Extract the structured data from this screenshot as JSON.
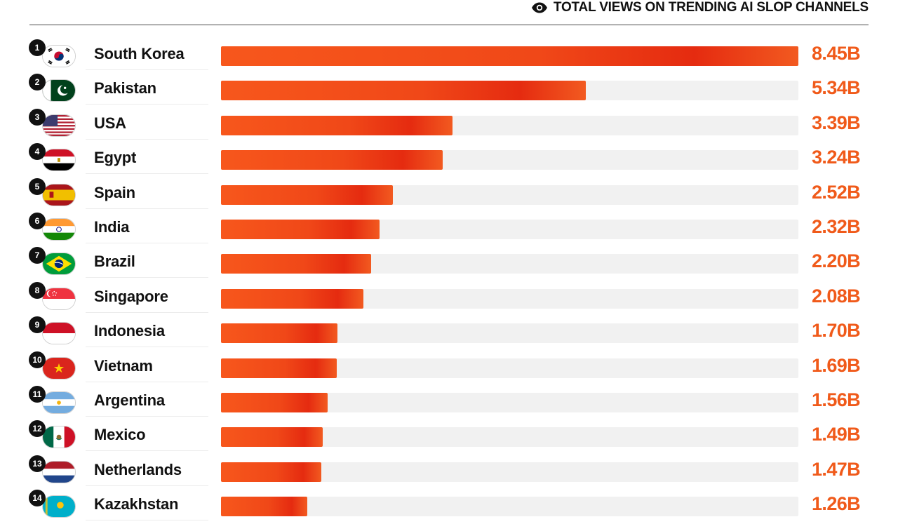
{
  "header": {
    "icon": "eye-icon",
    "title": "TOTAL VIEWS ON TRENDING AI SLOP CHANNELS"
  },
  "colors": {
    "bar": "#f04818",
    "bar_dark": "#e52b10",
    "value_text": "#f05a1a",
    "track": "#f1f1f1",
    "rank_badge": "#111111"
  },
  "chart_data": {
    "type": "bar",
    "orientation": "horizontal",
    "title": "TOTAL VIEWS ON TRENDING AI SLOP CHANNELS",
    "xlabel": "",
    "ylabel": "",
    "unit": "B",
    "xlim": [
      0,
      8.45
    ],
    "grid": false,
    "legend": "none",
    "categories": [
      "South Korea",
      "Pakistan",
      "USA",
      "Egypt",
      "Spain",
      "India",
      "Brazil",
      "Singapore",
      "Indonesia",
      "Vietnam",
      "Argentina",
      "Mexico",
      "Netherlands",
      "Kazakhstan"
    ],
    "values": [
      8.45,
      5.34,
      3.39,
      3.24,
      2.52,
      2.32,
      2.2,
      2.08,
      1.7,
      1.69,
      1.56,
      1.49,
      1.47,
      1.26
    ],
    "value_labels": [
      "8.45B",
      "5.34B",
      "3.39B",
      "3.24B",
      "2.52B",
      "2.32B",
      "2.20B",
      "2.08B",
      "1.70B",
      "1.69B",
      "1.56B",
      "1.49B",
      "1.47B",
      "1.26B"
    ],
    "ranks": [
      "1",
      "2",
      "3",
      "4",
      "5",
      "6",
      "7",
      "8",
      "9",
      "10",
      "11",
      "12",
      "13",
      "14"
    ],
    "flags": [
      "south-korea",
      "pakistan",
      "usa",
      "egypt",
      "spain",
      "india",
      "brazil",
      "singapore",
      "indonesia",
      "vietnam",
      "argentina",
      "mexico",
      "netherlands",
      "kazakhstan"
    ]
  }
}
